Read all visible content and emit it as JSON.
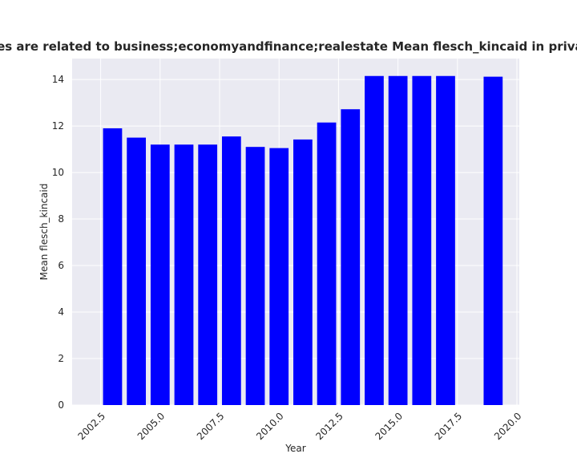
{
  "chart_data": {
    "type": "bar",
    "title": "Categories are related to business;economyandfinance;realestate Mean flesch_kincaid in privacy policies",
    "xlabel": "Year",
    "ylabel": "Mean flesch_kincaid",
    "x": [
      2003,
      2004,
      2005,
      2006,
      2007,
      2008,
      2009,
      2010,
      2011,
      2012,
      2013,
      2014,
      2015,
      2016,
      2017,
      2019
    ],
    "values": [
      11.9,
      11.5,
      11.2,
      11.2,
      11.2,
      11.55,
      11.1,
      11.05,
      11.42,
      12.15,
      12.72,
      14.15,
      14.15,
      14.15,
      14.15,
      14.12
    ],
    "xlim": [
      2001.3,
      2020.1
    ],
    "ylim": [
      0,
      14.9
    ],
    "xticks": [
      2002.5,
      2005.0,
      2007.5,
      2010.0,
      2012.5,
      2015.0,
      2017.5,
      2020.0
    ],
    "xtick_labels": [
      "2002.5",
      "2005.0",
      "2007.5",
      "2010.0",
      "2012.5",
      "2015.0",
      "2017.5",
      "2020.0"
    ],
    "yticks": [
      0,
      2,
      4,
      6,
      8,
      10,
      12,
      14
    ],
    "ytick_labels": [
      "0",
      "2",
      "4",
      "6",
      "8",
      "10",
      "12",
      "14"
    ],
    "bar_color": "#0000ff",
    "background_color": "#eaeaf2",
    "grid": true,
    "legend": false
  }
}
